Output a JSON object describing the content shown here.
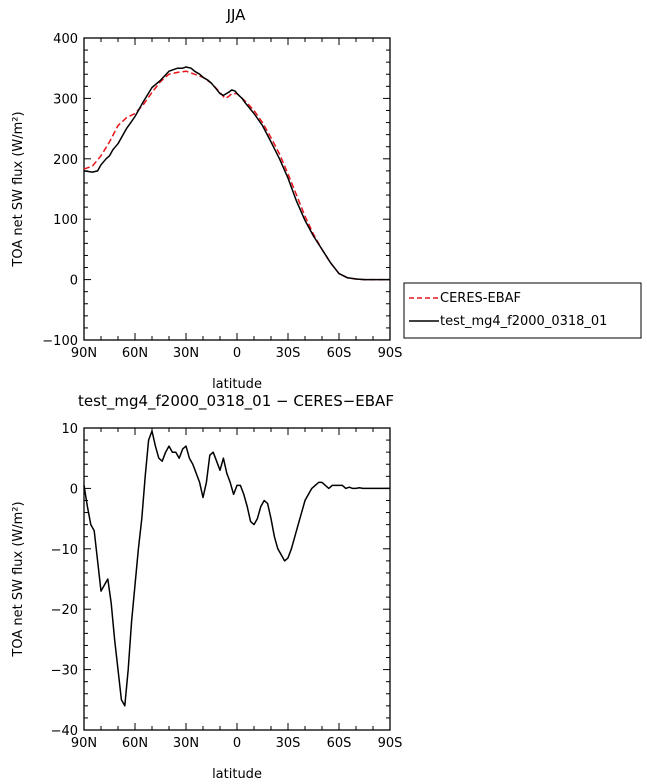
{
  "chart_data": [
    {
      "type": "line",
      "title": "JJA",
      "xlabel": "latitude",
      "ylabel": "TOA net SW flux (W/m²)",
      "x_ticks": [
        "90N",
        "60N",
        "30N",
        "0",
        "30S",
        "60S",
        "90S"
      ],
      "y_ticks": [
        "400",
        "300",
        "200",
        "100",
        "0",
        "−100"
      ],
      "xlim": [
        90,
        -90
      ],
      "ylim": [
        -100,
        400
      ],
      "legend_position": "right, below plot",
      "series": [
        {
          "name": "CERES-EBAF",
          "color": "#e8141c",
          "dash": "dashed",
          "x": [
            90,
            85,
            80,
            75,
            70,
            65,
            60,
            55,
            50,
            45,
            40,
            35,
            30,
            25,
            20,
            15,
            10,
            7,
            5,
            3,
            0,
            -5,
            -10,
            -15,
            -20,
            -25,
            -30,
            -35,
            -40,
            -45,
            -50,
            -55,
            -60,
            -65,
            -70,
            -75,
            -80,
            -85,
            -90
          ],
          "values": [
            183,
            188,
            205,
            228,
            255,
            268,
            275,
            290,
            310,
            328,
            340,
            343,
            345,
            340,
            335,
            325,
            310,
            300,
            303,
            308,
            308,
            295,
            280,
            260,
            235,
            208,
            175,
            140,
            105,
            75,
            50,
            28,
            10,
            3,
            1,
            0,
            0,
            0,
            0
          ]
        },
        {
          "name": "test_mg4_f2000_0318_01",
          "color": "#000000",
          "dash": "solid",
          "x": [
            90,
            85,
            82,
            80,
            77,
            75,
            73,
            70,
            67,
            65,
            63,
            60,
            55,
            50,
            45,
            40,
            35,
            32,
            30,
            27,
            25,
            22,
            20,
            17,
            15,
            12,
            10,
            8,
            5,
            3,
            1,
            0,
            -3,
            -5,
            -10,
            -15,
            -20,
            -25,
            -30,
            -35,
            -40,
            -45,
            -50,
            -55,
            -60,
            -65,
            -70,
            -75,
            -80,
            -85,
            -90
          ],
          "values": [
            180,
            178,
            180,
            190,
            200,
            205,
            215,
            225,
            240,
            250,
            258,
            270,
            295,
            318,
            330,
            345,
            350,
            350,
            352,
            350,
            345,
            340,
            335,
            330,
            325,
            315,
            308,
            305,
            310,
            314,
            312,
            308,
            300,
            292,
            275,
            255,
            228,
            200,
            168,
            130,
            98,
            72,
            50,
            28,
            10,
            3,
            1,
            0,
            0,
            0,
            0
          ]
        }
      ]
    },
    {
      "type": "line",
      "title": "test_mg4_f2000_0318_01 − CERES−EBAF",
      "xlabel": "latitude",
      "ylabel": "TOA net SW flux (W/m²)",
      "x_ticks": [
        "90N",
        "60N",
        "30N",
        "0",
        "30S",
        "60S",
        "90S"
      ],
      "y_ticks": [
        "10",
        "0",
        "−10",
        "−20",
        "−30",
        "−40"
      ],
      "xlim": [
        90,
        -90
      ],
      "ylim": [
        -40,
        10
      ],
      "series": [
        {
          "color": "#000000",
          "dash": "solid",
          "x": [
            90,
            88,
            86,
            84,
            82,
            80,
            78,
            76,
            74,
            72,
            70,
            68,
            66,
            64,
            62,
            60,
            58,
            56,
            54,
            52,
            50,
            48,
            46,
            44,
            42,
            40,
            38,
            36,
            34,
            32,
            30,
            28,
            26,
            24,
            22,
            20,
            18,
            16,
            14,
            12,
            10,
            8,
            6,
            4,
            2,
            0,
            -2,
            -4,
            -6,
            -8,
            -10,
            -12,
            -14,
            -16,
            -18,
            -20,
            -22,
            -24,
            -26,
            -28,
            -30,
            -32,
            -34,
            -36,
            -38,
            -40,
            -42,
            -44,
            -46,
            -48,
            -50,
            -52,
            -54,
            -56,
            -58,
            -60,
            -62,
            -64,
            -66,
            -68,
            -70,
            -72,
            -74,
            -76,
            -78,
            -80,
            -82,
            -84,
            -86,
            -88,
            -90
          ],
          "values": [
            0.5,
            -3,
            -6,
            -7,
            -12,
            -17,
            -16,
            -15,
            -19,
            -25,
            -30,
            -35,
            -36,
            -30,
            -22,
            -16,
            -10,
            -5,
            2,
            8,
            9.5,
            7,
            5,
            4.5,
            6,
            7,
            6,
            6,
            5,
            6.5,
            7,
            5,
            4,
            2.5,
            1,
            -1.5,
            1,
            5.5,
            6,
            4.5,
            3,
            5,
            2.5,
            1,
            -1,
            0.5,
            0.5,
            -1,
            -3,
            -5.5,
            -6,
            -5,
            -3,
            -2,
            -2.5,
            -5,
            -8,
            -10,
            -11,
            -12,
            -11.5,
            -10,
            -8,
            -6,
            -4,
            -2,
            -1,
            0,
            0.5,
            1,
            1,
            0.5,
            0,
            0.5,
            0.5,
            0.5,
            0.5,
            0,
            0.2,
            0,
            0,
            0.1,
            0,
            0,
            0,
            0,
            0,
            0,
            0,
            0,
            0
          ]
        }
      ]
    }
  ]
}
